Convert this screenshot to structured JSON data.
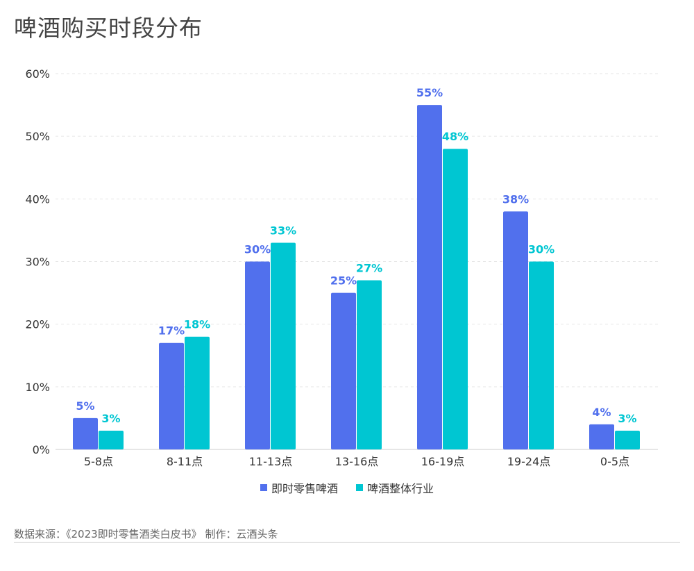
{
  "title": "啤酒购买时段分布",
  "source_note": "数据来源：《2023即时零售酒类白皮书》 制作：云酒头条",
  "colors": {
    "series1": "#5170ED",
    "series2": "#00C6D2",
    "grid": "#e6e6e6",
    "axis": "#cccccc"
  },
  "chart_data": {
    "type": "bar",
    "title": "啤酒购买时段分布",
    "xlabel": "",
    "ylabel": "",
    "categories": [
      "5-8点",
      "8-11点",
      "11-13点",
      "13-16点",
      "16-19点",
      "19-24点",
      "0-5点"
    ],
    "series": [
      {
        "name": "即时零售啤酒",
        "values": [
          5,
          17,
          30,
          25,
          55,
          38,
          4
        ]
      },
      {
        "name": "啤酒整体行业",
        "values": [
          3,
          18,
          33,
          27,
          48,
          30,
          3
        ]
      }
    ],
    "ylim": [
      0,
      60
    ],
    "yticks": [
      "0%",
      "10%",
      "20%",
      "30%",
      "40%",
      "50%",
      "60%"
    ],
    "value_suffix": "%",
    "grid": true,
    "legend_position": "bottom-center"
  }
}
